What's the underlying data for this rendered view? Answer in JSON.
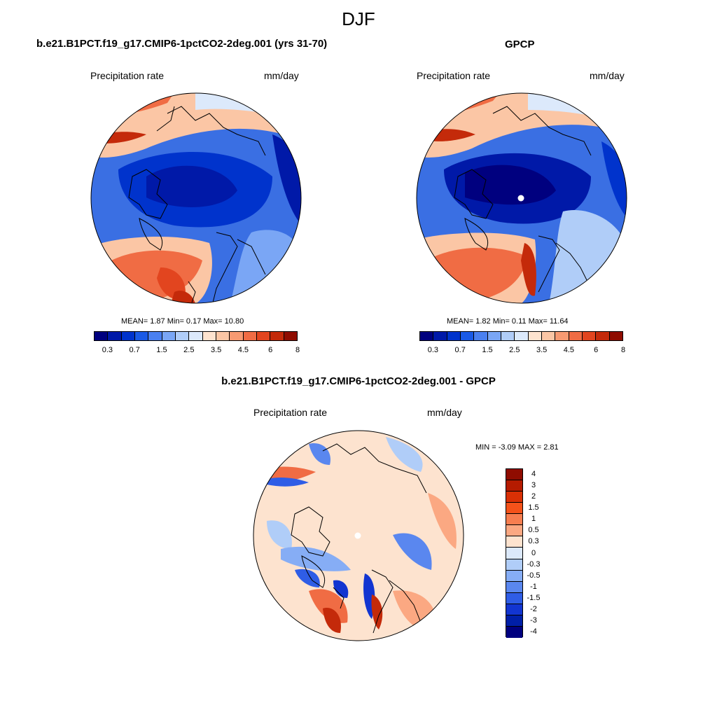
{
  "figure": {
    "season": "DJF",
    "panel_a": {
      "title": "b.e21.B1PCT.f19_g17.CMIP6-1pctCO2-2deg.001 (yrs 31-70)",
      "variable": "Precipitation rate",
      "units": "mm/day",
      "stats": "MEAN=   1.87  Min=   0.17  Max=  10.80"
    },
    "panel_b": {
      "title": "GPCP",
      "variable": "Precipitation rate",
      "units": "mm/day",
      "stats": "MEAN=   1.82  Min=   0.11  Max=  11.64"
    },
    "panel_c": {
      "title": "b.e21.B1PCT.f19_g17.CMIP6-1pctCO2-2deg.001 - GPCP",
      "variable": "Precipitation rate",
      "units": "mm/day",
      "stats": "MIN =  -3.09 MAX =   2.81"
    }
  },
  "colorbar_abs": {
    "colors": [
      "#00007f",
      "#0019a8",
      "#0033cc",
      "#1a5ae6",
      "#4a80f0",
      "#7aa6f5",
      "#b0cdf8",
      "#dce9fb",
      "#fde3cf",
      "#fbc6a5",
      "#f79a72",
      "#f06c44",
      "#e2451f",
      "#c42a0a",
      "#8f0c00"
    ],
    "tick_labels": [
      "0.3",
      "0.7",
      "1.5",
      "2.5",
      "3.5",
      "4.5",
      "6",
      "8"
    ]
  },
  "colorbar_diff": {
    "colors": [
      "#8f0c00",
      "#b51b00",
      "#d93005",
      "#f4521a",
      "#f77e50",
      "#fba882",
      "#fde3cf",
      "#dce9fb",
      "#b0cdf8",
      "#86adf5",
      "#5a87ef",
      "#2f5de6",
      "#1235d1",
      "#001fa8",
      "#00007f"
    ],
    "tick_labels": [
      "4",
      "3",
      "2",
      "1.5",
      "1",
      "0.5",
      "0.3",
      "0",
      "-0.3",
      "-0.5",
      "-1",
      "-1.5",
      "-2",
      "-3",
      "-4"
    ]
  }
}
